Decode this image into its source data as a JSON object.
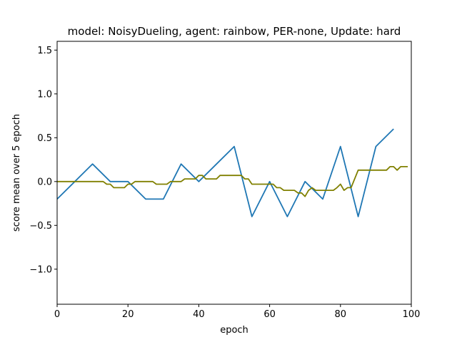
{
  "chart_data": {
    "type": "line",
    "title": "model: NoisyDueling, agent: rainbow, PER-none, Update: hard",
    "xlabel": "epoch",
    "ylabel": "score mean over 5 epoch",
    "xlim": [
      0,
      100
    ],
    "ylim": [
      -1.4,
      1.6
    ],
    "xticks": [
      0,
      20,
      40,
      60,
      80,
      100
    ],
    "yticks": [
      -1.0,
      -0.5,
      0.0,
      0.5,
      1.0,
      1.5
    ],
    "xtick_labels": [
      "0",
      "20",
      "40",
      "60",
      "80",
      "100"
    ],
    "ytick_labels": [
      "−1.0",
      "−0.5",
      "0.0",
      "0.5",
      "1.0",
      "1.5"
    ],
    "grid": false,
    "series": [
      {
        "color": "#1f77b4",
        "x": [
          0,
          5,
          10,
          15,
          20,
          25,
          30,
          35,
          40,
          45,
          50,
          55,
          60,
          65,
          70,
          75,
          80,
          85,
          90,
          95
        ],
        "y": [
          -0.2,
          0.0,
          0.2,
          0.0,
          0.0,
          -0.2,
          -0.2,
          0.2,
          0.0,
          0.2,
          0.4,
          -0.4,
          0.0,
          -0.4,
          0.0,
          -0.2,
          0.4,
          -0.4,
          0.4,
          0.6
        ]
      },
      {
        "color": "#808000",
        "x": [
          0,
          13,
          14,
          15,
          16,
          19,
          20,
          21,
          22,
          27,
          28,
          31,
          32,
          35,
          36,
          39,
          40,
          41,
          42,
          45,
          46,
          52,
          53,
          54,
          55,
          61,
          62,
          63,
          64,
          67,
          68,
          69,
          70,
          71,
          72,
          73,
          74,
          78,
          79,
          80,
          81,
          82,
          83,
          85,
          93,
          94,
          95,
          96,
          97,
          99
        ],
        "y": [
          0.0,
          0.0,
          -0.03,
          -0.03,
          -0.07,
          -0.07,
          -0.03,
          -0.03,
          0.0,
          0.0,
          -0.03,
          -0.03,
          0.0,
          0.0,
          0.03,
          0.03,
          0.07,
          0.07,
          0.03,
          0.03,
          0.07,
          0.07,
          0.03,
          0.03,
          -0.03,
          -0.03,
          -0.07,
          -0.07,
          -0.1,
          -0.1,
          -0.13,
          -0.13,
          -0.17,
          -0.1,
          -0.07,
          -0.1,
          -0.1,
          -0.1,
          -0.07,
          -0.03,
          -0.1,
          -0.07,
          -0.07,
          0.13,
          0.13,
          0.17,
          0.17,
          0.13,
          0.17,
          0.17
        ]
      }
    ]
  }
}
